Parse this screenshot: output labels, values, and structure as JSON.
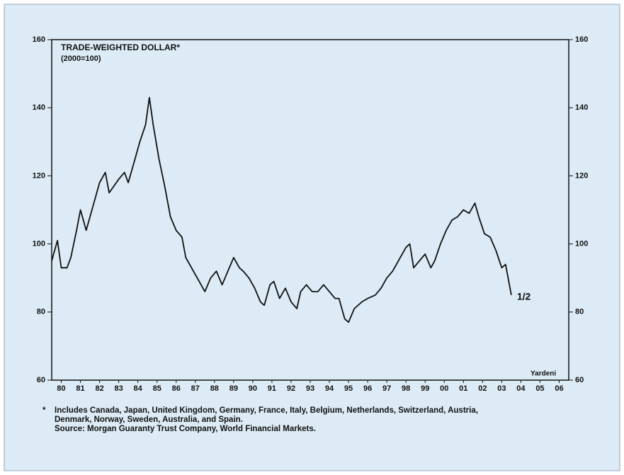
{
  "chart_data": {
    "type": "line",
    "title": "TRADE-WEIGHTED DOLLAR*",
    "subtitle": "(2000=100)",
    "annotations": [
      "1/2",
      "Yardeni"
    ],
    "notes": [
      "*",
      "Includes Canada, Japan, United Kingdom, Germany, France, Italy, Belgium, Netherlands, Switzerland, Austria,",
      "Denmark, Norway, Sweden, Australia, and Spain.",
      "Source: Morgan Guaranty Trust Company, World Financial Markets."
    ],
    "x": [
      1980.0,
      1980.3,
      1980.5,
      1980.8,
      1981.0,
      1981.3,
      1981.5,
      1981.8,
      1982.0,
      1982.5,
      1982.8,
      1983.0,
      1983.5,
      1983.8,
      1984.0,
      1984.3,
      1984.6,
      1984.9,
      1985.1,
      1985.3,
      1985.6,
      1985.9,
      1986.2,
      1986.5,
      1986.8,
      1987.0,
      1987.4,
      1987.8,
      1988.0,
      1988.3,
      1988.6,
      1988.9,
      1989.2,
      1989.5,
      1989.8,
      1990.0,
      1990.3,
      1990.6,
      1990.9,
      1991.1,
      1991.4,
      1991.6,
      1991.9,
      1992.2,
      1992.5,
      1992.8,
      1993.0,
      1993.3,
      1993.6,
      1993.9,
      1994.2,
      1994.5,
      1994.8,
      1995.0,
      1995.3,
      1995.5,
      1995.8,
      1996.2,
      1996.5,
      1996.9,
      1997.2,
      1997.5,
      1997.8,
      1998.2,
      1998.5,
      1998.7,
      1998.9,
      1999.2,
      1999.5,
      1999.8,
      2000.0,
      2000.3,
      2000.6,
      2000.9,
      2001.2,
      2001.5,
      2001.8,
      2002.1,
      2002.3,
      2002.6,
      2002.9,
      2003.2,
      2003.5,
      2003.7,
      2003.9,
      2004.0
    ],
    "series": [
      {
        "name": "Trade-weighted dollar",
        "color": "#111111",
        "values": [
          95,
          101,
          93,
          93,
          96,
          104,
          110,
          104,
          108,
          118,
          121,
          115,
          119,
          121,
          118,
          124,
          130,
          135,
          143,
          135,
          125,
          117,
          108,
          104,
          102,
          96,
          92,
          88,
          86,
          90,
          92,
          88,
          92,
          96,
          93,
          92,
          90,
          87,
          83,
          82,
          88,
          89,
          84,
          87,
          83,
          81,
          86,
          88,
          86,
          86,
          88,
          86,
          84,
          84,
          78,
          77,
          81,
          83,
          84,
          85,
          87,
          90,
          92,
          96,
          99,
          100,
          93,
          95,
          97,
          93,
          95,
          100,
          104,
          107,
          108,
          110,
          109,
          112,
          108,
          103,
          102,
          98,
          93,
          94,
          88,
          85
        ]
      }
    ],
    "xlim": [
      1980,
      2007
    ],
    "xticks": [
      {
        "value": 1980.5,
        "label": "80"
      },
      {
        "value": 1981.5,
        "label": "81"
      },
      {
        "value": 1982.5,
        "label": "82"
      },
      {
        "value": 1983.5,
        "label": "83"
      },
      {
        "value": 1984.5,
        "label": "84"
      },
      {
        "value": 1985.5,
        "label": "85"
      },
      {
        "value": 1986.5,
        "label": "86"
      },
      {
        "value": 1987.5,
        "label": "87"
      },
      {
        "value": 1988.5,
        "label": "88"
      },
      {
        "value": 1989.5,
        "label": "89"
      },
      {
        "value": 1990.5,
        "label": "90"
      },
      {
        "value": 1991.5,
        "label": "91"
      },
      {
        "value": 1992.5,
        "label": "92"
      },
      {
        "value": 1993.5,
        "label": "93"
      },
      {
        "value": 1994.5,
        "label": "94"
      },
      {
        "value": 1995.5,
        "label": "95"
      },
      {
        "value": 1996.5,
        "label": "96"
      },
      {
        "value": 1997.5,
        "label": "97"
      },
      {
        "value": 1998.5,
        "label": "98"
      },
      {
        "value": 1999.5,
        "label": "99"
      },
      {
        "value": 2000.5,
        "label": "00"
      },
      {
        "value": 2001.5,
        "label": "01"
      },
      {
        "value": 2002.5,
        "label": "02"
      },
      {
        "value": 2003.5,
        "label": "03"
      },
      {
        "value": 2004.5,
        "label": "04"
      },
      {
        "value": 2005.5,
        "label": "05"
      },
      {
        "value": 2006.5,
        "label": "06"
      }
    ],
    "ylim": [
      60,
      160
    ],
    "yticks": [
      60,
      80,
      100,
      120,
      140,
      160
    ],
    "y2lim": [
      60,
      160
    ],
    "y2ticks": [
      60,
      80,
      100,
      120,
      140,
      160
    ],
    "grid": false
  }
}
